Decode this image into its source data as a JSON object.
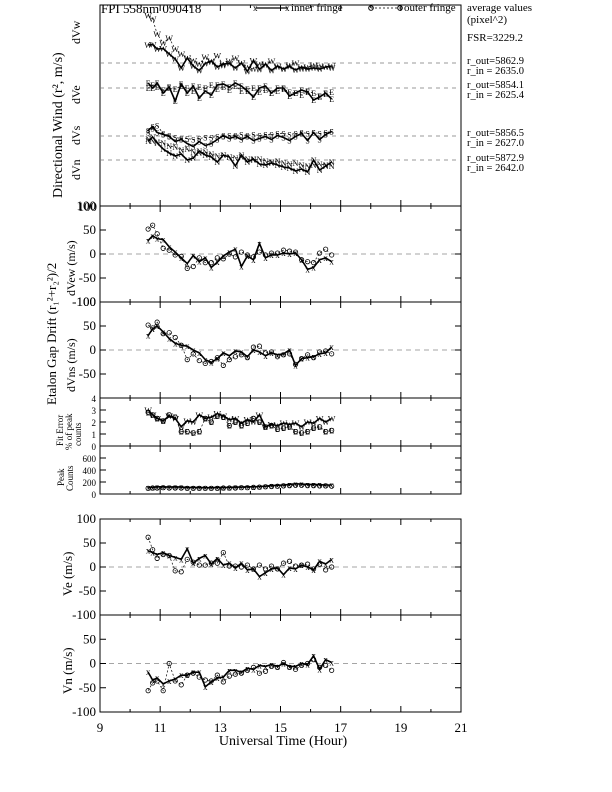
{
  "header": {
    "title": "FPI 558nm 090418",
    "legend_inner": "inner fringe",
    "legend_outer": "outer fringe",
    "avg_title_1": "average values",
    "avg_title_2": "(pixel^2)",
    "fsr": "FSR=3229.2",
    "vw_out": "r_out=5862.9",
    "vw_in": "r_in = 2635.0",
    "ve_out": "r_out=5854.1",
    "ve_in": "r_in = 2625.4",
    "vs_out": "r_out=5856.5",
    "vs_in": "r_in = 2627.0",
    "vn_out": "r_out=5872.9",
    "vn_in": "r_in = 2642.0"
  },
  "axes": {
    "x_label": "Universal Time (Hour)",
    "x_ticks": [
      "9",
      "11",
      "13",
      "15",
      "17",
      "19",
      "21"
    ],
    "dir_wind_label": "Directional Wind (r², m/s)",
    "dvw": "dVw",
    "dve": "dVe",
    "dvn": "dVn",
    "dvs": "dVs",
    "etalon_label": "Etalon Gap Drift (r₁²+r₂²)/2",
    "dvew": "dVew (m/s)",
    "dvns": "dVns (m/s)",
    "fit_error": "Fit Error",
    "of_peak": "% of peak",
    "counts": "counts",
    "peak": "Peak",
    "peak_counts": "Counts",
    "ve": "Ve (m/s)",
    "vn": "Vn (m/s)"
  },
  "chart_data": [
    {
      "type": "line",
      "panel": "directional_wind",
      "xlim": [
        9,
        21
      ],
      "ylim": [
        -100,
        100
      ],
      "y_tick": "100",
      "grid": "dashed reference lines",
      "series": [
        {
          "name": "dVw",
          "x": [
            10.6,
            10.75,
            10.9,
            11.1,
            11.3,
            11.5,
            11.7,
            11.9,
            12.1,
            12.3,
            12.5,
            12.7,
            12.9,
            13.1,
            13.3,
            13.5,
            13.7,
            13.9,
            14.1,
            14.3,
            14.5,
            14.7,
            14.9,
            15.1,
            15.3,
            15.5,
            15.7,
            15.9,
            16.1,
            16.3,
            16.5,
            16.7
          ],
          "inner": [
            56,
            57,
            48,
            49,
            38,
            28,
            10,
            30,
            14,
            5,
            19,
            24,
            12,
            18,
            19,
            10,
            20,
            3,
            25,
            7,
            18,
            5,
            14,
            8,
            13,
            6,
            12,
            8,
            10,
            8,
            12,
            14
          ],
          "outer": [
            115,
            108,
            78,
            60,
            70,
            48,
            38,
            30,
            25,
            18,
            32,
            22,
            35,
            15,
            24,
            30,
            20,
            12,
            8,
            18,
            16,
            24,
            12,
            8,
            16,
            20,
            8,
            12,
            16,
            14,
            12,
            10
          ]
        },
        {
          "name": "dVe",
          "x": [
            10.6,
            10.75,
            10.9,
            11.1,
            11.3,
            11.5,
            11.7,
            11.9,
            12.1,
            12.3,
            12.5,
            12.7,
            12.9,
            13.1,
            13.3,
            13.5,
            13.7,
            13.9,
            14.1,
            14.3,
            14.5,
            14.7,
            14.9,
            15.1,
            15.3,
            15.5,
            15.7,
            15.9,
            16.1,
            16.3,
            16.5,
            16.7
          ],
          "inner": [
            -10,
            -20,
            -10,
            -30,
            -18,
            -46,
            -12,
            -30,
            -16,
            -40,
            -26,
            -34,
            -14,
            -12,
            -18,
            -10,
            -16,
            -26,
            -38,
            -20,
            -16,
            -30,
            -20,
            -20,
            -36,
            -30,
            -24,
            -28,
            -44,
            -38,
            -30,
            -42
          ],
          "outer": [
            -20,
            -14,
            -18,
            -24,
            -20,
            -22,
            -16,
            -20,
            -26,
            -18,
            -20,
            -14,
            -22,
            -18,
            -24,
            -16,
            -26,
            -22,
            -20,
            -28,
            -24,
            -30,
            -26,
            -22,
            -28,
            -30,
            -34,
            -26,
            -30,
            -36,
            -32,
            -28
          ]
        },
        {
          "name": "dVn",
          "x": [
            10.6,
            10.75,
            10.9,
            11.1,
            11.3,
            11.5,
            11.7,
            11.9,
            12.1,
            12.3,
            12.5,
            12.7,
            12.9,
            13.1,
            13.3,
            13.5,
            13.7,
            13.9,
            14.1,
            14.3,
            14.5,
            14.7,
            14.9,
            15.1,
            15.3,
            15.5,
            15.7,
            15.9,
            16.1,
            16.3,
            16.5,
            16.7
          ],
          "inner": [
            -62,
            -54,
            -66,
            -78,
            -86,
            -92,
            -88,
            -100,
            -96,
            -82,
            -90,
            -94,
            -104,
            -90,
            -94,
            -112,
            -90,
            -104,
            -98,
            -108,
            -110,
            -106,
            -110,
            -114,
            -116,
            -122,
            -118,
            -124,
            -100,
            -120,
            -112,
            -104
          ],
          "outer": [
            -58,
            -62,
            -64,
            -66,
            -72,
            -74,
            -80,
            -78,
            -84,
            -86,
            -84,
            -88,
            -92,
            -90,
            -94,
            -96,
            -94,
            -98,
            -100,
            -98,
            -102,
            -104,
            -102,
            -106,
            -108,
            -106,
            -110,
            -112,
            -110,
            -108,
            -110,
            -112
          ]
        },
        {
          "name": "dVs",
          "x": [
            10.6,
            10.75,
            10.9,
            11.1,
            11.3,
            11.5,
            11.7,
            11.9,
            12.1,
            12.3,
            12.5,
            12.7,
            12.9,
            13.1,
            13.3,
            13.5,
            13.7,
            13.9,
            14.1,
            14.3,
            14.5,
            14.7,
            14.9,
            15.1,
            15.3,
            15.5,
            15.7,
            15.9,
            16.1,
            16.3,
            16.5,
            16.7
          ],
          "inner": [
            -44,
            -36,
            -48,
            -52,
            -56,
            -66,
            -62,
            -70,
            -76,
            -66,
            -74,
            -70,
            -62,
            -54,
            -60,
            -56,
            -62,
            -56,
            -64,
            -60,
            -56,
            -62,
            -54,
            -58,
            -64,
            -56,
            -50,
            -64,
            -48,
            -62,
            -52,
            -46
          ],
          "outer": [
            -48,
            -40,
            -34,
            -50,
            -54,
            -58,
            -60,
            -60,
            -62,
            -60,
            -58,
            -58,
            -56,
            -56,
            -54,
            -54,
            -52,
            -54,
            -52,
            -54,
            -52,
            -52,
            -50,
            -50,
            -52,
            -50,
            -48,
            -50,
            -48,
            -50,
            -48,
            -46
          ]
        }
      ]
    },
    {
      "type": "line",
      "panel": "dVew",
      "xlim": [
        9,
        21
      ],
      "ylim": [
        -100,
        100
      ],
      "yticks": [
        -50,
        0,
        50
      ],
      "ylabel": "dVew (m/s)",
      "x": [
        10.6,
        10.75,
        10.9,
        11.1,
        11.3,
        11.5,
        11.7,
        11.9,
        12.1,
        12.3,
        12.5,
        12.7,
        12.9,
        13.1,
        13.3,
        13.5,
        13.7,
        13.9,
        14.1,
        14.3,
        14.5,
        14.7,
        14.9,
        15.1,
        15.3,
        15.5,
        15.7,
        15.9,
        16.1,
        16.3,
        16.5,
        16.7
      ],
      "inner": [
        28,
        38,
        32,
        30,
        15,
        4,
        -8,
        -20,
        -3,
        -16,
        -8,
        -28,
        -17,
        -4,
        4,
        10,
        -26,
        -4,
        -12,
        22,
        -8,
        -2,
        -2,
        2,
        0,
        2,
        -12,
        -32,
        -28,
        -12,
        -8,
        -16
      ],
      "outer": [
        52,
        60,
        42,
        12,
        8,
        -2,
        -5,
        -30,
        -26,
        -8,
        -18,
        -18,
        -8,
        -10,
        0,
        -6,
        4,
        -2,
        -6,
        4,
        -2,
        2,
        2,
        8,
        6,
        4,
        -12,
        -16,
        -18,
        2,
        10,
        -2
      ]
    },
    {
      "type": "line",
      "panel": "dVns",
      "xlim": [
        9,
        21
      ],
      "ylim": [
        -100,
        100
      ],
      "yticks": [
        -50,
        0,
        50
      ],
      "ylabel": "dVns (m/s)",
      "x": [
        10.6,
        10.75,
        10.9,
        11.1,
        11.3,
        11.5,
        11.7,
        11.9,
        12.1,
        12.3,
        12.5,
        12.7,
        12.9,
        13.1,
        13.3,
        13.5,
        13.7,
        13.9,
        14.1,
        14.3,
        14.5,
        14.7,
        14.9,
        15.1,
        15.3,
        15.5,
        15.7,
        15.9,
        16.1,
        16.3,
        16.5,
        16.7
      ],
      "inner": [
        30,
        44,
        50,
        38,
        24,
        14,
        10,
        8,
        0,
        -6,
        -20,
        -26,
        -18,
        -6,
        -12,
        -2,
        -4,
        -14,
        0,
        -4,
        -12,
        -6,
        -10,
        -8,
        0,
        -32,
        -18,
        -16,
        -14,
        -8,
        -6,
        6
      ],
      "outer": [
        52,
        46,
        58,
        34,
        36,
        26,
        10,
        -20,
        -8,
        -22,
        -28,
        -24,
        -16,
        -32,
        -20,
        -14,
        -10,
        -16,
        6,
        8,
        -6,
        -4,
        -14,
        -10,
        -8,
        -30,
        -18,
        -10,
        -16,
        -4,
        -2,
        -8
      ]
    },
    {
      "type": "line",
      "panel": "fit_error",
      "xlim": [
        9,
        21
      ],
      "ylim": [
        0,
        4
      ],
      "yticks": [
        0,
        1,
        2,
        3,
        4
      ],
      "ylabel": "Fit Error % of peak counts",
      "x": [
        10.6,
        10.75,
        10.9,
        11.1,
        11.3,
        11.5,
        11.7,
        11.9,
        12.1,
        12.3,
        12.5,
        12.7,
        12.9,
        13.1,
        13.3,
        13.5,
        13.7,
        13.9,
        14.1,
        14.3,
        14.5,
        14.7,
        14.9,
        15.1,
        15.3,
        15.5,
        15.7,
        15.9,
        16.1,
        16.3,
        16.5,
        16.7
      ],
      "inner": [
        3.0,
        2.6,
        2.3,
        2.1,
        2.5,
        2.3,
        1.6,
        2.1,
        2.0,
        2.6,
        2.3,
        2.4,
        2.7,
        2.5,
        2.2,
        2.3,
        1.9,
        2.2,
        2.0,
        2.6,
        1.6,
        1.8,
        1.7,
        1.9,
        1.8,
        1.9,
        1.6,
        2.0,
        1.9,
        2.3,
        2.0,
        2.3
      ],
      "outer": [
        2.8,
        2.6,
        2.3,
        2.1,
        2.6,
        2.4,
        1.2,
        1.2,
        1.1,
        1.2,
        2.3,
        2.0,
        2.5,
        2.4,
        1.7,
        2.0,
        1.7,
        1.9,
        2.3,
        2.0,
        1.6,
        1.7,
        1.4,
        1.5,
        1.6,
        1.2,
        1.1,
        1.2,
        1.5,
        1.6,
        1.2,
        1.3
      ]
    },
    {
      "type": "line",
      "panel": "peak_counts",
      "xlim": [
        9,
        21
      ],
      "ylim": [
        0,
        800
      ],
      "yticks": [
        0,
        200,
        400,
        600
      ],
      "ylabel": "Peak Counts",
      "x": [
        10.6,
        10.75,
        10.9,
        11.1,
        11.3,
        11.5,
        11.7,
        11.9,
        12.1,
        12.3,
        12.5,
        12.7,
        12.9,
        13.1,
        13.3,
        13.5,
        13.7,
        13.9,
        14.1,
        14.3,
        14.5,
        14.7,
        14.9,
        15.1,
        15.3,
        15.5,
        15.7,
        15.9,
        16.1,
        16.3,
        16.5,
        16.7
      ],
      "inner": [
        110,
        110,
        120,
        120,
        115,
        120,
        115,
        110,
        110,
        110,
        105,
        105,
        110,
        110,
        110,
        115,
        115,
        120,
        120,
        125,
        130,
        140,
        145,
        150,
        160,
        170,
        165,
        160,
        160,
        155,
        150,
        150
      ],
      "outer": [
        95,
        100,
        100,
        105,
        100,
        100,
        100,
        95,
        95,
        95,
        95,
        95,
        95,
        100,
        100,
        100,
        105,
        105,
        110,
        115,
        120,
        125,
        130,
        135,
        140,
        145,
        145,
        140,
        140,
        135,
        135,
        130
      ]
    },
    {
      "type": "line",
      "panel": "Ve",
      "xlim": [
        9,
        21
      ],
      "ylim": [
        -100,
        100
      ],
      "yticks": [
        -100,
        -50,
        0,
        50,
        100
      ],
      "ylabel": "Ve (m/s)",
      "x": [
        10.6,
        10.75,
        10.9,
        11.1,
        11.3,
        11.5,
        11.7,
        11.9,
        12.1,
        12.3,
        12.5,
        12.7,
        12.9,
        13.1,
        13.3,
        13.5,
        13.7,
        13.9,
        14.1,
        14.3,
        14.5,
        14.7,
        14.9,
        15.1,
        15.3,
        15.5,
        15.7,
        15.9,
        16.1,
        16.3,
        16.5,
        16.7
      ],
      "inner": [
        34,
        30,
        26,
        30,
        24,
        20,
        16,
        38,
        8,
        18,
        24,
        6,
        18,
        4,
        8,
        -2,
        8,
        -6,
        -4,
        -20,
        -12,
        -4,
        -2,
        -16,
        -2,
        -4,
        4,
        0,
        -6,
        12,
        6,
        16
      ],
      "outer": [
        62,
        36,
        18,
        26,
        24,
        -8,
        -10,
        16,
        10,
        4,
        4,
        8,
        8,
        30,
        2,
        2,
        0,
        4,
        -4,
        4,
        -4,
        2,
        -4,
        8,
        12,
        2,
        4,
        6,
        -4,
        6,
        -6,
        0
      ]
    },
    {
      "type": "line",
      "panel": "Vn",
      "xlim": [
        9,
        21
      ],
      "ylim": [
        -100,
        100
      ],
      "yticks": [
        -100,
        -50,
        0,
        50,
        100
      ],
      "ylabel": "Vn (m/s)",
      "x": [
        10.6,
        10.75,
        10.9,
        11.1,
        11.3,
        11.5,
        11.7,
        11.9,
        12.1,
        12.3,
        12.5,
        12.7,
        12.9,
        13.1,
        13.3,
        13.5,
        13.7,
        13.9,
        14.1,
        14.3,
        14.5,
        14.7,
        14.9,
        15.1,
        15.3,
        15.5,
        15.7,
        15.9,
        16.1,
        16.3,
        16.5,
        16.7
      ],
      "inner": [
        -18,
        -34,
        -30,
        -42,
        -36,
        -32,
        -24,
        -24,
        -18,
        -18,
        -48,
        -38,
        -30,
        -28,
        -14,
        -14,
        -18,
        -10,
        -12,
        -4,
        -6,
        -2,
        -6,
        0,
        -6,
        -6,
        0,
        -2,
        16,
        -12,
        8,
        2
      ],
      "outer": [
        -56,
        -40,
        -36,
        -56,
        0,
        -36,
        -44,
        -24,
        -20,
        -28,
        -34,
        -36,
        -24,
        -38,
        -26,
        -22,
        -20,
        -14,
        -8,
        -20,
        -16,
        -6,
        -8,
        2,
        -8,
        -12,
        -4,
        0,
        8,
        -8,
        -4,
        -14
      ]
    }
  ]
}
